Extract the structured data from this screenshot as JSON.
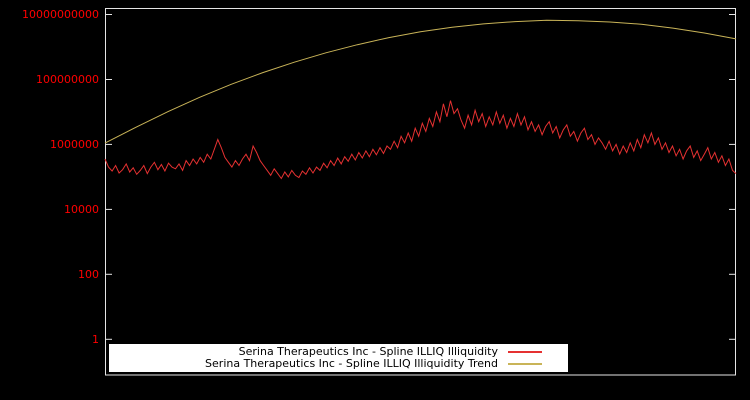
{
  "chart_data": {
    "type": "line",
    "title": "",
    "background_color": "#000000",
    "border_color": "#e5e5e5",
    "x": "evenly spaced index 0..1 (no x-axis tick labels shown)",
    "axis": {
      "y_scale": "log10",
      "y_tick_labels": [
        "10000000000",
        "100000000",
        "1000000",
        "10000",
        "100",
        "1"
      ],
      "y_ticks_log10": [
        10,
        8,
        6,
        4,
        2,
        0
      ],
      "ylim_log10": [
        -1.1,
        10.2
      ],
      "tick_label_color": "#ff0000",
      "grid": "off"
    },
    "legend": {
      "position": "bottom-center-inside",
      "background": "#ffffff",
      "text_color": "#000000"
    },
    "series": [
      {
        "name": "Serina Therapeutics Inc - Spline ILLIQ Illiquidity",
        "color": "#e53131",
        "log10_values": [
          5.55,
          5.3,
          5.18,
          5.35,
          5.12,
          5.22,
          5.4,
          5.15,
          5.28,
          5.08,
          5.2,
          5.35,
          5.1,
          5.3,
          5.45,
          5.22,
          5.38,
          5.18,
          5.42,
          5.3,
          5.25,
          5.4,
          5.2,
          5.5,
          5.35,
          5.55,
          5.4,
          5.6,
          5.45,
          5.7,
          5.55,
          5.85,
          6.15,
          5.9,
          5.6,
          5.45,
          5.3,
          5.5,
          5.35,
          5.55,
          5.7,
          5.5,
          5.95,
          5.75,
          5.5,
          5.35,
          5.2,
          5.05,
          5.25,
          5.1,
          4.95,
          5.15,
          5.0,
          5.2,
          5.05,
          4.98,
          5.18,
          5.08,
          5.28,
          5.12,
          5.3,
          5.2,
          5.42,
          5.28,
          5.5,
          5.35,
          5.58,
          5.4,
          5.62,
          5.48,
          5.7,
          5.52,
          5.75,
          5.58,
          5.8,
          5.62,
          5.85,
          5.68,
          5.9,
          5.72,
          5.95,
          5.85,
          6.1,
          5.9,
          6.25,
          6.05,
          6.35,
          6.1,
          6.5,
          6.25,
          6.65,
          6.4,
          6.8,
          6.55,
          7.0,
          6.7,
          7.25,
          6.85,
          7.35,
          6.95,
          7.1,
          6.75,
          6.5,
          6.9,
          6.6,
          7.05,
          6.7,
          6.95,
          6.55,
          6.85,
          6.6,
          7.0,
          6.65,
          6.9,
          6.5,
          6.8,
          6.55,
          6.95,
          6.6,
          6.85,
          6.45,
          6.7,
          6.4,
          6.6,
          6.3,
          6.55,
          6.7,
          6.35,
          6.55,
          6.2,
          6.45,
          6.6,
          6.25,
          6.4,
          6.1,
          6.35,
          6.5,
          6.15,
          6.3,
          6.0,
          6.2,
          6.05,
          5.85,
          6.1,
          5.8,
          6.0,
          5.7,
          5.95,
          5.75,
          6.05,
          5.8,
          6.15,
          5.9,
          6.3,
          6.05,
          6.35,
          6.0,
          6.2,
          5.85,
          6.05,
          5.75,
          5.95,
          5.65,
          5.85,
          5.55,
          5.8,
          5.95,
          5.6,
          5.8,
          5.5,
          5.7,
          5.9,
          5.55,
          5.75,
          5.45,
          5.65,
          5.35,
          5.55,
          5.2,
          5.1
        ]
      },
      {
        "name": "Serina Therapeutics Inc - Spline ILLIQ Illiquidity Trend",
        "color": "#c9b458",
        "log10_values": [
          6.04,
          6.54,
          7.01,
          7.45,
          7.85,
          8.21,
          8.53,
          8.82,
          9.07,
          9.29,
          9.47,
          9.61,
          9.71,
          9.78,
          9.82,
          9.81,
          9.77,
          9.7,
          9.58,
          9.43,
          9.25
        ]
      }
    ]
  }
}
